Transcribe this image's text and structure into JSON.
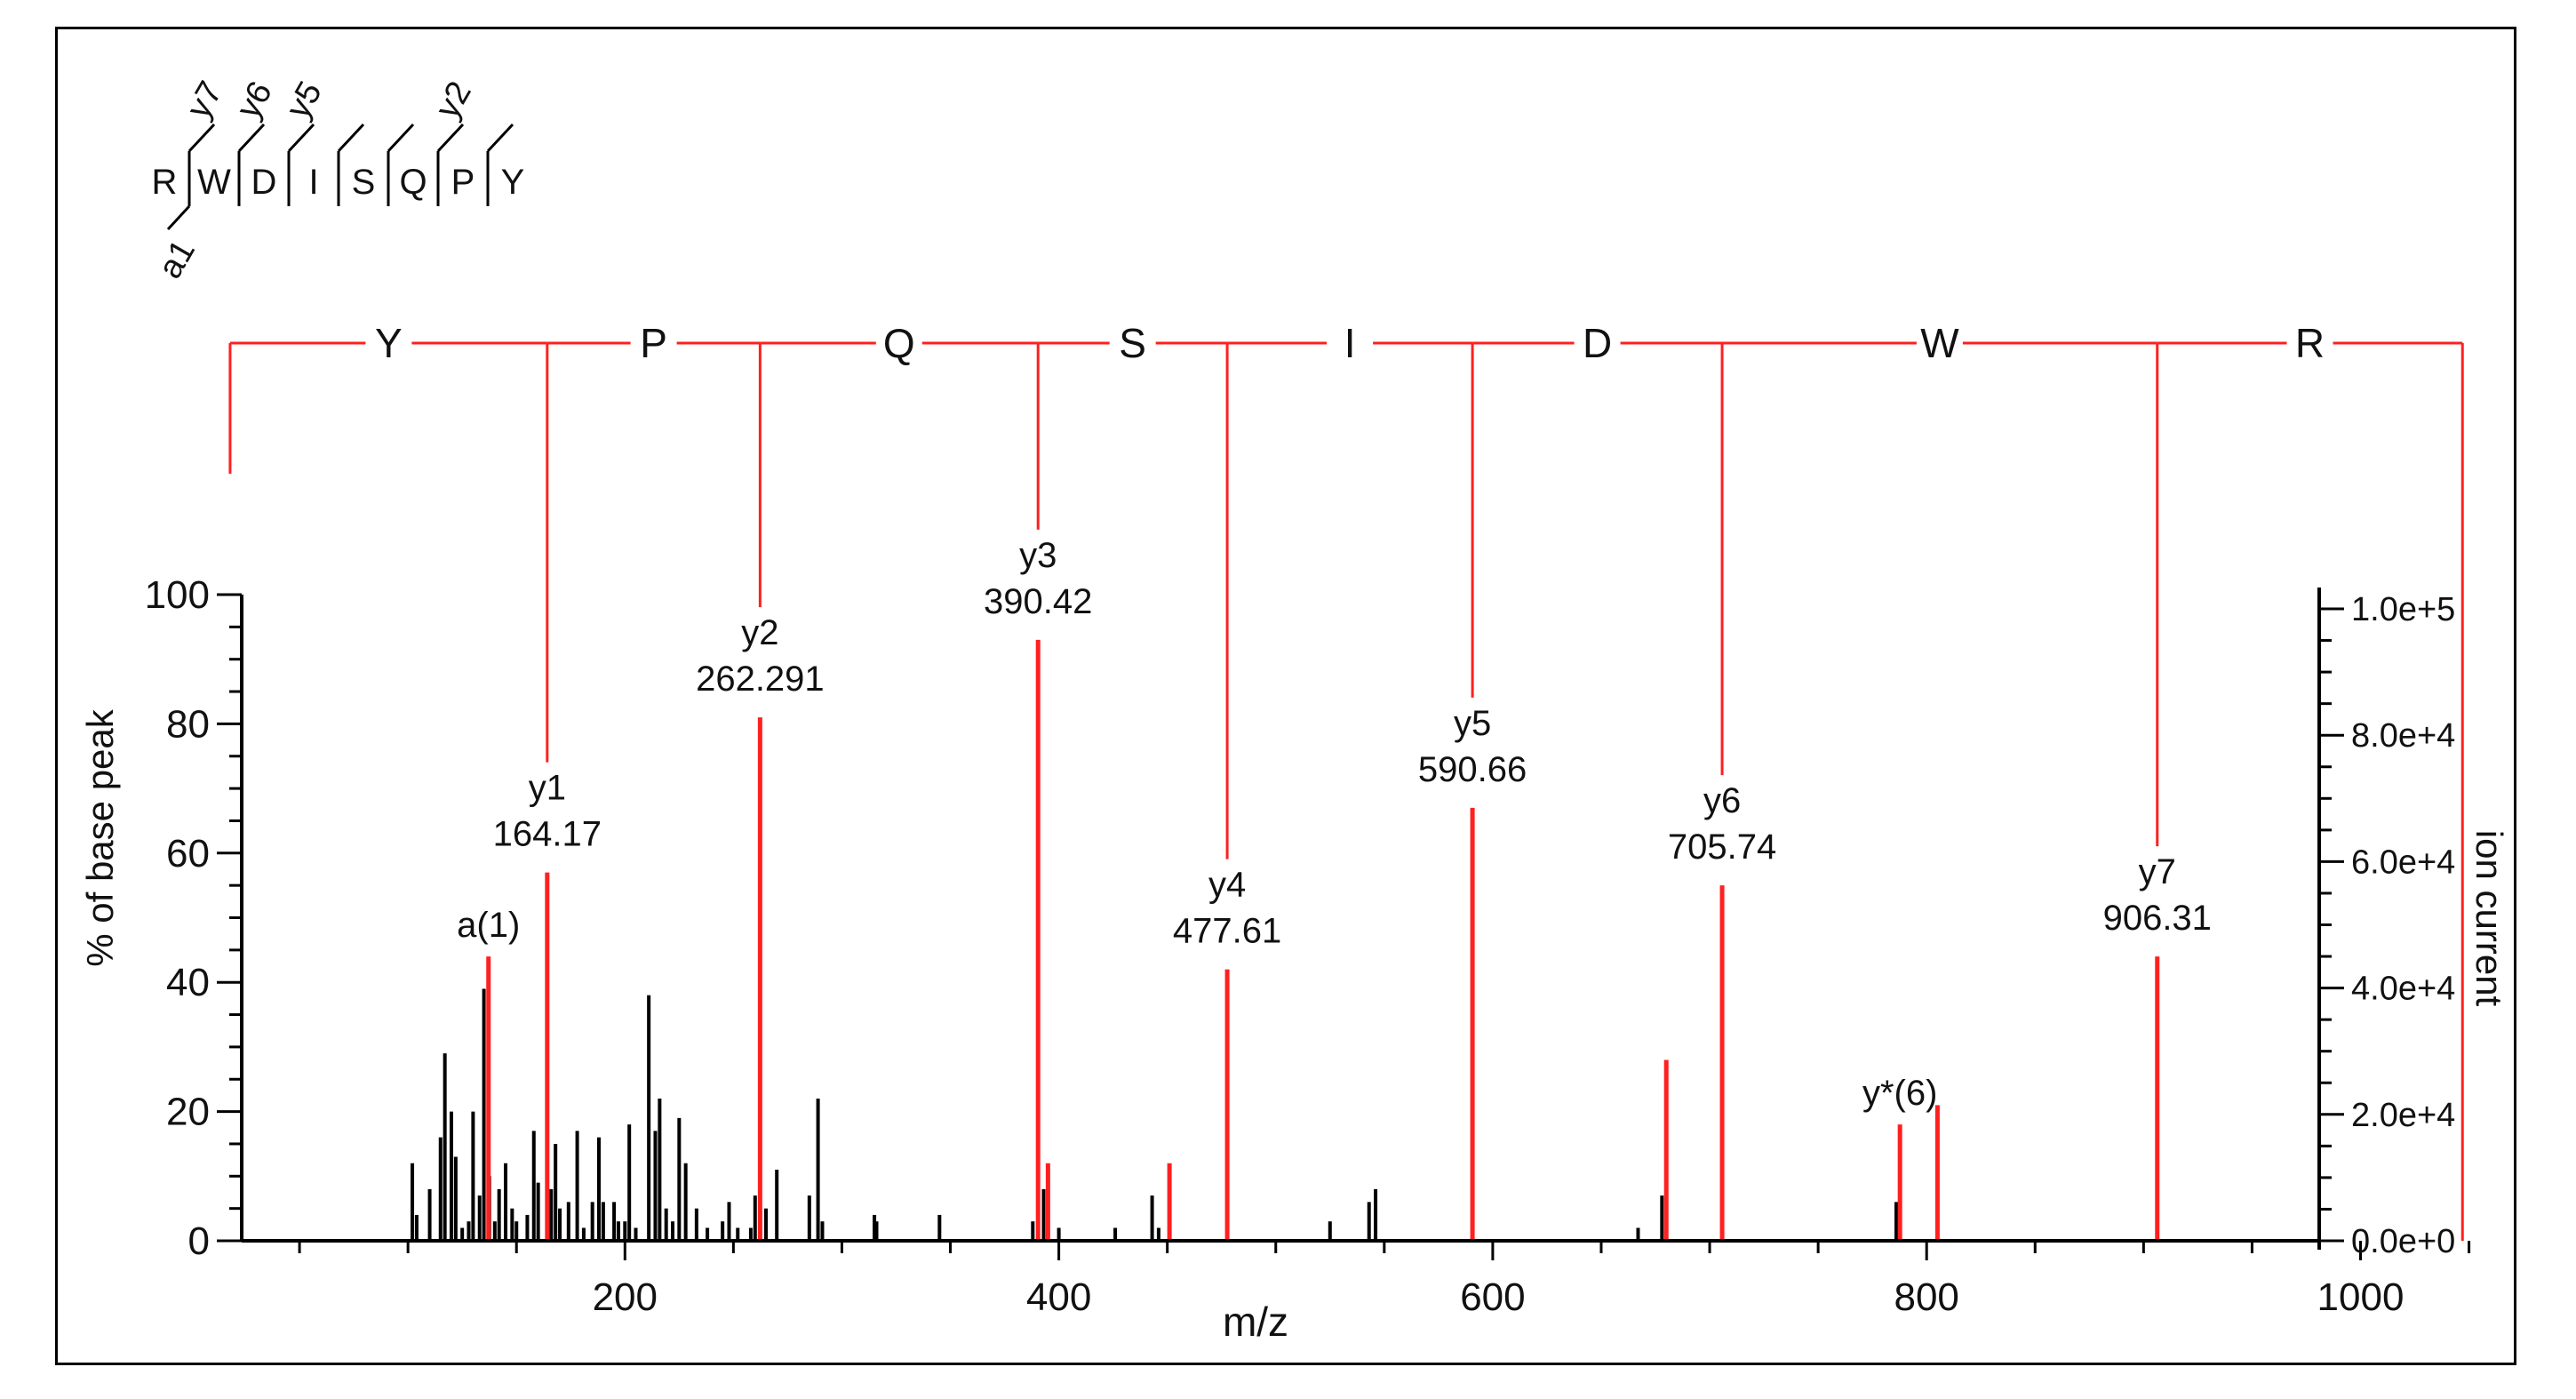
{
  "colors": {
    "annotated": "#ff2020",
    "peak": "#000000",
    "axis": "#000000"
  },
  "sequence_key": {
    "residues": [
      "R",
      "W",
      "D",
      "I",
      "S",
      "Q",
      "P",
      "Y"
    ],
    "y_marks": [
      {
        "after": 0,
        "label": "y7"
      },
      {
        "after": 1,
        "label": "y6"
      },
      {
        "after": 2,
        "label": "y5"
      },
      {
        "after": 5,
        "label": "y2"
      }
    ],
    "a_marks": [
      {
        "after": 0,
        "label": "a1"
      }
    ]
  },
  "ladder": {
    "residues": [
      "Y",
      "P",
      "Q",
      "S",
      "I",
      "D",
      "W",
      "R"
    ],
    "start_mz": 18,
    "end_mz": 1047,
    "fragment_mz": [
      164.17,
      262.291,
      390.42,
      477.61,
      590.66,
      705.74,
      906.31
    ]
  },
  "chart_data": {
    "type": "bar",
    "title": "",
    "xlabel": "m/z",
    "ylabel": "% of base peak",
    "y2label": "ion current",
    "xlim": [
      0,
      1050
    ],
    "ylim": [
      0,
      100
    ],
    "y2lim": [
      0,
      100000
    ],
    "x_ticks": [
      200,
      400,
      600,
      800,
      1000
    ],
    "y_ticks": [
      0,
      20,
      40,
      60,
      80,
      100
    ],
    "y2_ticks": [
      "0.0e+0",
      "2.0e+4",
      "4.0e+4",
      "6.0e+4",
      "8.0e+4",
      "1.0e+5"
    ],
    "annotated_peaks": [
      {
        "mz": 137.1,
        "value": 44,
        "label": "a(1)",
        "mz_label": ""
      },
      {
        "mz": 164.17,
        "value": 57,
        "label": "y1",
        "mz_label": "164.17"
      },
      {
        "mz": 262.291,
        "value": 81,
        "label": "y2",
        "mz_label": "262.291"
      },
      {
        "mz": 390.42,
        "value": 93,
        "label": "y3",
        "mz_label": "390.42"
      },
      {
        "mz": 477.61,
        "value": 42,
        "label": "y4",
        "mz_label": "477.61"
      },
      {
        "mz": 590.66,
        "value": 67,
        "label": "y5",
        "mz_label": "590.66"
      },
      {
        "mz": 705.74,
        "value": 55,
        "label": "y6",
        "mz_label": "705.74"
      },
      {
        "mz": 906.31,
        "value": 44,
        "label": "y7",
        "mz_label": "906.31"
      },
      {
        "mz": 787.7,
        "value": 18,
        "label": "y*(6)",
        "mz_label": ""
      }
    ],
    "unlabeled_annotated_peaks": [
      {
        "mz": 395,
        "value": 12
      },
      {
        "mz": 451,
        "value": 12
      },
      {
        "mz": 680,
        "value": 28
      },
      {
        "mz": 805,
        "value": 21
      }
    ],
    "peaks": [
      {
        "mz": 102,
        "value": 12
      },
      {
        "mz": 104,
        "value": 4
      },
      {
        "mz": 110,
        "value": 8
      },
      {
        "mz": 115,
        "value": 16
      },
      {
        "mz": 117,
        "value": 29
      },
      {
        "mz": 120,
        "value": 20
      },
      {
        "mz": 122,
        "value": 13
      },
      {
        "mz": 125,
        "value": 2
      },
      {
        "mz": 128,
        "value": 3
      },
      {
        "mz": 130,
        "value": 20
      },
      {
        "mz": 133,
        "value": 7
      },
      {
        "mz": 135,
        "value": 39
      },
      {
        "mz": 137.5,
        "value": 10
      },
      {
        "mz": 140,
        "value": 3
      },
      {
        "mz": 142,
        "value": 8
      },
      {
        "mz": 145,
        "value": 12
      },
      {
        "mz": 148,
        "value": 5
      },
      {
        "mz": 150,
        "value": 3
      },
      {
        "mz": 155,
        "value": 4
      },
      {
        "mz": 158,
        "value": 17
      },
      {
        "mz": 160,
        "value": 9
      },
      {
        "mz": 166,
        "value": 8
      },
      {
        "mz": 168,
        "value": 15
      },
      {
        "mz": 170,
        "value": 5
      },
      {
        "mz": 174,
        "value": 6
      },
      {
        "mz": 178,
        "value": 17
      },
      {
        "mz": 181,
        "value": 2
      },
      {
        "mz": 185,
        "value": 6
      },
      {
        "mz": 188,
        "value": 16
      },
      {
        "mz": 190,
        "value": 6
      },
      {
        "mz": 195,
        "value": 6
      },
      {
        "mz": 197,
        "value": 3
      },
      {
        "mz": 200,
        "value": 3
      },
      {
        "mz": 202,
        "value": 18
      },
      {
        "mz": 205,
        "value": 2
      },
      {
        "mz": 211,
        "value": 38
      },
      {
        "mz": 214,
        "value": 17
      },
      {
        "mz": 216,
        "value": 22
      },
      {
        "mz": 219,
        "value": 5
      },
      {
        "mz": 222,
        "value": 3
      },
      {
        "mz": 225,
        "value": 19
      },
      {
        "mz": 228,
        "value": 12
      },
      {
        "mz": 233,
        "value": 5
      },
      {
        "mz": 238,
        "value": 2
      },
      {
        "mz": 245,
        "value": 3
      },
      {
        "mz": 248,
        "value": 6
      },
      {
        "mz": 252,
        "value": 2
      },
      {
        "mz": 258,
        "value": 2
      },
      {
        "mz": 260,
        "value": 7
      },
      {
        "mz": 265,
        "value": 5
      },
      {
        "mz": 270,
        "value": 11
      },
      {
        "mz": 285,
        "value": 7
      },
      {
        "mz": 289,
        "value": 22
      },
      {
        "mz": 291,
        "value": 3
      },
      {
        "mz": 315,
        "value": 4
      },
      {
        "mz": 316,
        "value": 3
      },
      {
        "mz": 345,
        "value": 4
      },
      {
        "mz": 388,
        "value": 3
      },
      {
        "mz": 390.42,
        "value": 14
      },
      {
        "mz": 393,
        "value": 8
      },
      {
        "mz": 400,
        "value": 2
      },
      {
        "mz": 426,
        "value": 2
      },
      {
        "mz": 443,
        "value": 7
      },
      {
        "mz": 446,
        "value": 2
      },
      {
        "mz": 477.61,
        "value": 6
      },
      {
        "mz": 525,
        "value": 3
      },
      {
        "mz": 543,
        "value": 6
      },
      {
        "mz": 546,
        "value": 8
      },
      {
        "mz": 590.66,
        "value": 7
      },
      {
        "mz": 667,
        "value": 2
      },
      {
        "mz": 678,
        "value": 7
      },
      {
        "mz": 705.74,
        "value": 6
      },
      {
        "mz": 786,
        "value": 6
      },
      {
        "mz": 805,
        "value": 8
      },
      {
        "mz": 906.31,
        "value": 2
      }
    ]
  }
}
